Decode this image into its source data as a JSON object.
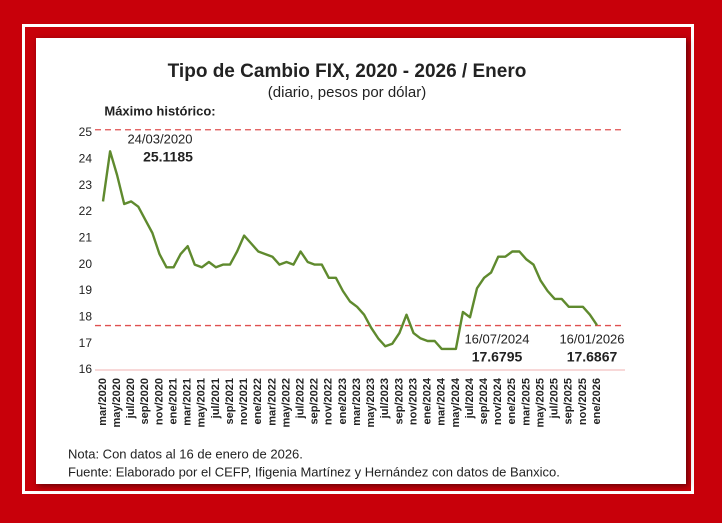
{
  "chart_data": {
    "type": "line",
    "title": "Tipo de Cambio FIX, 2020 - 2026 / Enero",
    "subtitle": "(diario, pesos por dólar)",
    "categories": [
      "mar/2020",
      null,
      "may/2020",
      null,
      "jul/2020",
      null,
      "sep/2020",
      null,
      "nov/2020",
      null,
      "ene/2021",
      null,
      "mar/2021",
      null,
      "may/2021",
      null,
      "jul/2021",
      null,
      "sep/2021",
      null,
      "nov/2021",
      null,
      "ene/2022",
      null,
      "mar/2022",
      null,
      "may/2022",
      null,
      "jul/2022",
      null,
      "sep/2022",
      null,
      "nov/2022",
      null,
      "ene/2023",
      null,
      "mar/2023",
      null,
      "may/2023",
      null,
      "jul/2023",
      null,
      "sep/2023",
      null,
      "nov/2023",
      null,
      "ene/2024",
      null,
      "mar/2024",
      null,
      "may/2024",
      null,
      "jul/2024",
      null,
      "sep/2024",
      null,
      "nov/2024",
      null,
      "ene/2025",
      null,
      "mar/2025",
      null,
      "may/2025",
      null,
      "jul/2025",
      null,
      "sep/2025",
      null,
      "nov/2025",
      null,
      "ene/2026"
    ],
    "values": [
      22.4,
      24.3,
      23.4,
      22.3,
      22.4,
      22.2,
      21.7,
      21.2,
      20.4,
      19.9,
      19.9,
      20.4,
      20.7,
      20.0,
      19.9,
      20.1,
      19.9,
      20.0,
      20.0,
      20.5,
      21.1,
      20.8,
      20.5,
      20.4,
      20.3,
      20.0,
      20.1,
      20.0,
      20.5,
      20.1,
      20.0,
      20.0,
      19.5,
      19.5,
      19.0,
      18.6,
      18.4,
      18.1,
      17.6,
      17.2,
      16.9,
      17.0,
      17.4,
      18.1,
      17.4,
      17.2,
      17.1,
      17.1,
      16.8,
      16.8,
      16.8,
      18.2,
      18.0,
      19.1,
      19.5,
      19.7,
      20.3,
      20.3,
      20.5,
      20.5,
      20.2,
      20.0,
      19.4,
      19.0,
      18.7,
      18.7,
      18.4,
      18.4,
      18.4,
      18.1,
      17.7
    ],
    "color": "#5f8a2e",
    "ylim": [
      16,
      25.3
    ],
    "yticks": [
      16,
      17,
      18,
      19,
      20,
      21,
      22,
      23,
      24,
      25
    ],
    "annotations": [
      {
        "title": "Máximo histórico:",
        "date": "24/03/2020",
        "value": 25.1185
      },
      {
        "date": "16/07/2024",
        "value": 17.6795
      },
      {
        "date": "16/01/2026",
        "value": 17.6867
      }
    ],
    "reference_line_color": "#e05050",
    "notes": [
      "Nota: Con datos al 16 de enero de 2026.",
      "Fuente: Elaborado por el CEFP, Ifigenia Martínez y Hernández con datos de Banxico."
    ]
  }
}
